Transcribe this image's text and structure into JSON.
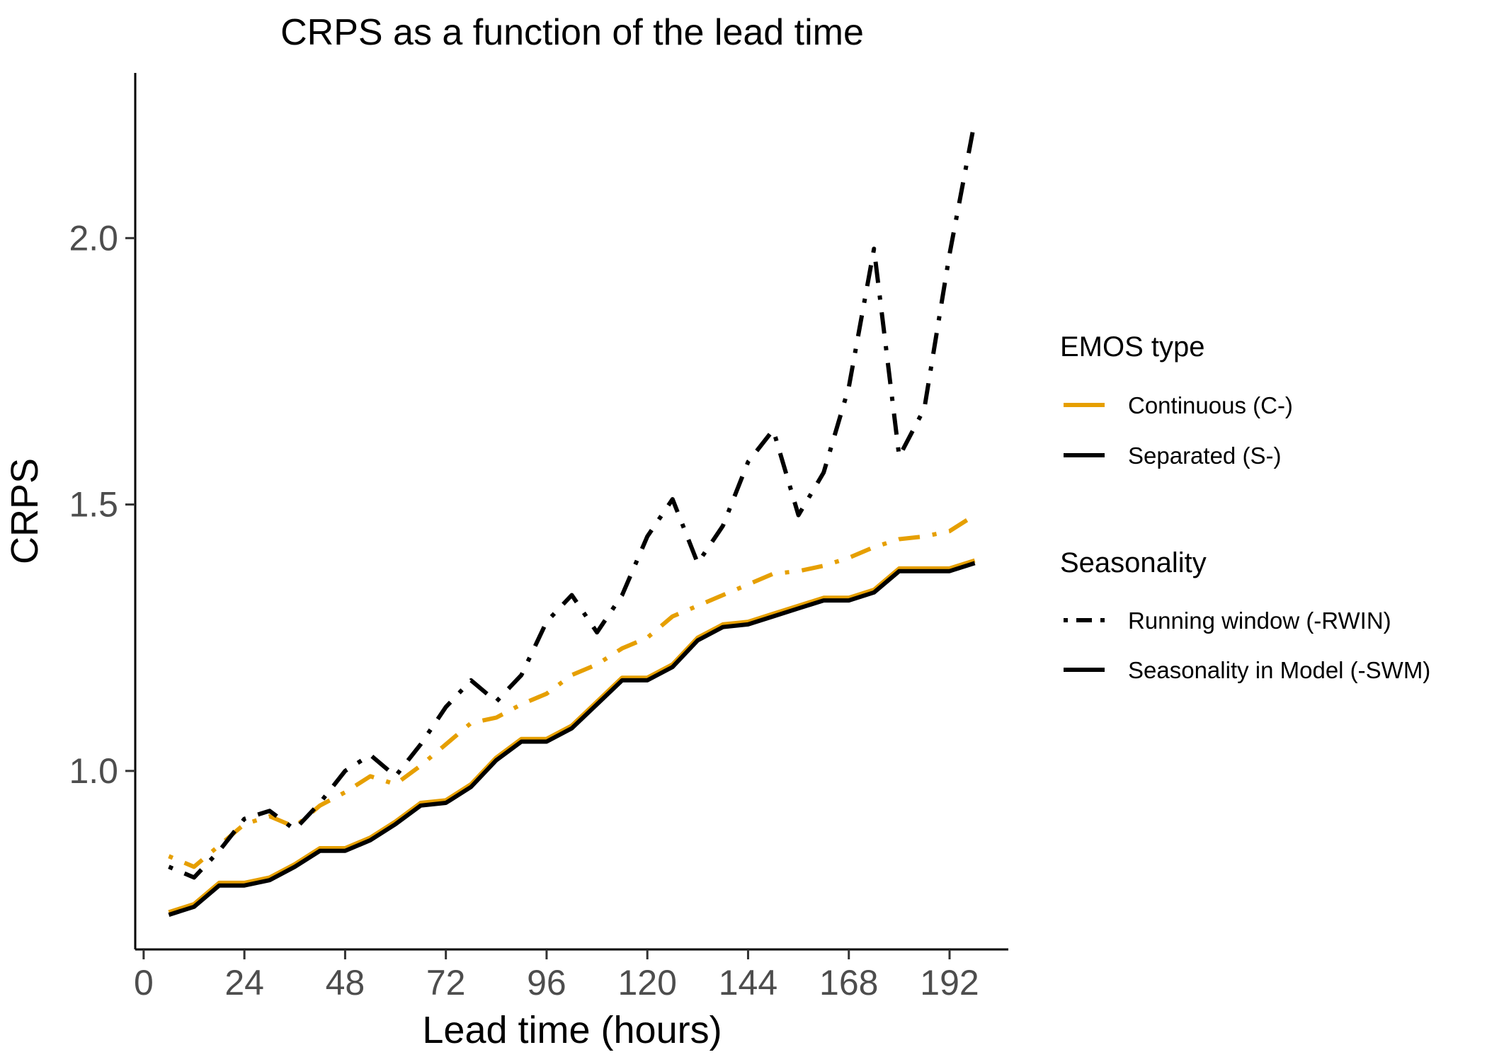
{
  "chart_data": {
    "type": "line",
    "title": "CRPS as a function of the lead time",
    "xlabel": "Lead time (hours)",
    "ylabel": "CRPS",
    "xlim": [
      -2,
      206
    ],
    "ylim": [
      0.665,
      2.31
    ],
    "xticks": [
      0,
      24,
      48,
      72,
      96,
      120,
      144,
      168,
      192
    ],
    "yticks": [
      1.0,
      1.5,
      2.0
    ],
    "ytick_labels": [
      "1.0",
      "1.5",
      "2.0"
    ],
    "grid": false,
    "legend_position": "right",
    "x": [
      6,
      12,
      18,
      24,
      30,
      36,
      42,
      48,
      54,
      60,
      66,
      72,
      78,
      84,
      90,
      96,
      102,
      108,
      114,
      120,
      126,
      132,
      138,
      144,
      150,
      156,
      162,
      168,
      174,
      180,
      186,
      192,
      198
    ],
    "series": [
      {
        "name": "C-RWIN",
        "emos": "continuous",
        "seasonality": "rwin",
        "values": [
          0.84,
          0.82,
          0.86,
          0.9,
          0.915,
          0.895,
          0.935,
          0.96,
          0.99,
          0.975,
          1.01,
          1.05,
          1.09,
          1.1,
          1.125,
          1.145,
          1.18,
          1.2,
          1.23,
          1.25,
          1.29,
          1.31,
          1.33,
          1.35,
          1.37,
          1.375,
          1.385,
          1.4,
          1.42,
          1.435,
          1.44,
          1.45,
          1.48
        ]
      },
      {
        "name": "S-RWIN",
        "emos": "separated",
        "seasonality": "rwin",
        "values": [
          0.82,
          0.8,
          0.85,
          0.91,
          0.925,
          0.89,
          0.94,
          1.0,
          1.03,
          0.99,
          1.05,
          1.12,
          1.17,
          1.13,
          1.18,
          1.28,
          1.33,
          1.26,
          1.33,
          1.44,
          1.51,
          1.39,
          1.46,
          1.58,
          1.64,
          1.48,
          1.56,
          1.72,
          1.98,
          1.59,
          1.68,
          1.97,
          2.22
        ]
      },
      {
        "name": "C-SWM",
        "emos": "continuous",
        "seasonality": "swm",
        "values": [
          0.735,
          0.75,
          0.79,
          0.79,
          0.8,
          0.825,
          0.855,
          0.855,
          0.875,
          0.905,
          0.94,
          0.945,
          0.975,
          1.025,
          1.06,
          1.06,
          1.085,
          1.13,
          1.175,
          1.175,
          1.2,
          1.25,
          1.275,
          1.28,
          1.295,
          1.31,
          1.325,
          1.325,
          1.34,
          1.38,
          1.38,
          1.38,
          1.395
        ]
      },
      {
        "name": "S-SWM",
        "emos": "separated",
        "seasonality": "swm",
        "values": [
          0.73,
          0.745,
          0.785,
          0.785,
          0.795,
          0.82,
          0.85,
          0.85,
          0.87,
          0.9,
          0.935,
          0.94,
          0.97,
          1.02,
          1.055,
          1.055,
          1.08,
          1.125,
          1.17,
          1.17,
          1.195,
          1.245,
          1.27,
          1.275,
          1.29,
          1.305,
          1.32,
          1.32,
          1.335,
          1.375,
          1.375,
          1.375,
          1.39
        ]
      }
    ],
    "legend": {
      "emos_title": "EMOS type",
      "emos_items": [
        {
          "key": "continuous",
          "label": "Continuous (C-)",
          "color": "#E69F00"
        },
        {
          "key": "separated",
          "label": "Separated (S-)",
          "color": "#000000"
        }
      ],
      "seasonality_title": "Seasonality",
      "seasonality_items": [
        {
          "key": "rwin",
          "label": "Running window (-RWIN)",
          "linetype": "dotdash"
        },
        {
          "key": "swm",
          "label": "Seasonality in Model (-SWM)",
          "linetype": "solid"
        }
      ]
    }
  }
}
